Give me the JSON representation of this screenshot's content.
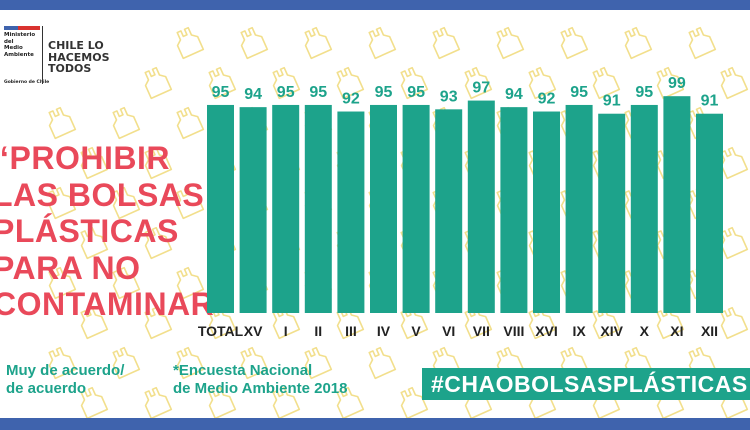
{
  "logo": {
    "ministry": "Ministerio del\nMedio\nAmbiente",
    "government": "Gobierno de Chile",
    "slogan": "CHILE LO\nHACEMOS\nTODOS"
  },
  "quote": [
    "“PROHIBIR",
    "LAS BOLSAS",
    "PLÁSTICAS",
    "PARA NO",
    "CONTAMINAR”"
  ],
  "legend": "Muy de acuerdo/\nde acuerdo",
  "source": "*Encuesta Nacional\nde Medio Ambiente 2018",
  "hashtag": "#CHAOBOLSASPLÁSTICAS",
  "colors": {
    "bar": "#1da38b",
    "quote": "#e9495a",
    "band": "#3f63ad",
    "bag_pattern": "#f2df8c",
    "axis_label": "#222222"
  },
  "icons": {
    "background_pattern": "plastic-bag-icon"
  },
  "chart_data": {
    "type": "bar",
    "categories": [
      "TOTAL",
      "XV",
      "I",
      "II",
      "III",
      "IV",
      "V",
      "VI",
      "VII",
      "VIII",
      "XVI",
      "IX",
      "XIV",
      "X",
      "XI",
      "XII"
    ],
    "values": [
      95,
      94,
      95,
      95,
      92,
      95,
      95,
      93,
      97,
      94,
      92,
      95,
      91,
      95,
      99,
      91
    ],
    "ylim": [
      0,
      100
    ],
    "data_labels": true,
    "grid": false,
    "legend": "bottom-left"
  }
}
